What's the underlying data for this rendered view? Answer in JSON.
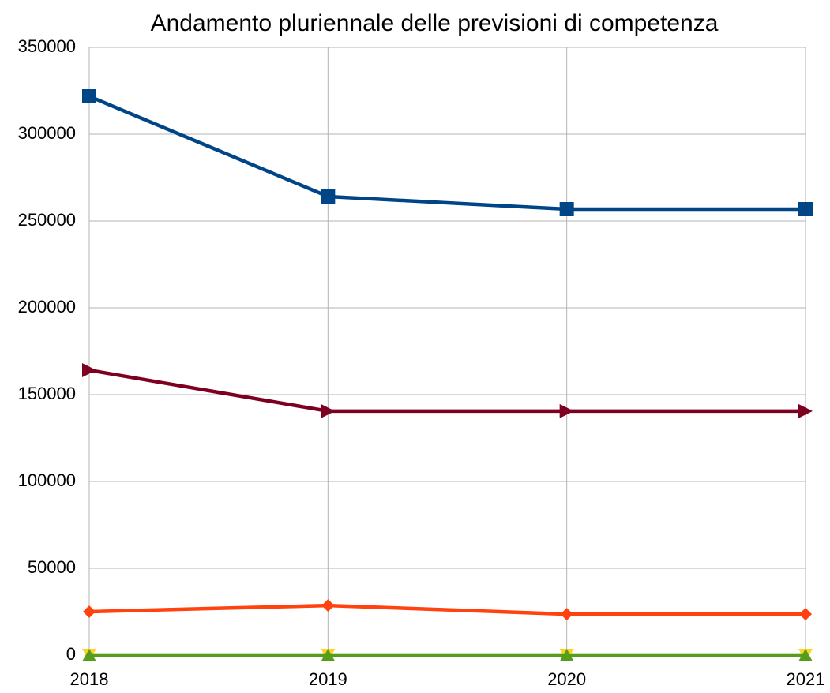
{
  "chart_data": {
    "type": "line",
    "title": "Andamento pluriennale delle previsioni di competenza",
    "categories": [
      "2018",
      "2019",
      "2020",
      "2021"
    ],
    "series": [
      {
        "color": "#004586",
        "marker": "square",
        "values": [
          321800,
          264100,
          256800,
          256800
        ]
      },
      {
        "color": "#7e0021",
        "marker": "triangle-right",
        "values": [
          164100,
          140500,
          140500,
          140500
        ]
      },
      {
        "color": "#ff420e",
        "marker": "diamond",
        "values": [
          25000,
          28600,
          23600,
          23600
        ]
      },
      {
        "color": "#ffd320",
        "marker": "triangle-down",
        "values": [
          0,
          0,
          0,
          0
        ]
      },
      {
        "color": "#579d1c",
        "marker": "triangle-up",
        "values": [
          0,
          0,
          0,
          0
        ]
      }
    ],
    "ylim": [
      0,
      350000
    ],
    "yticks": [
      0,
      50000,
      100000,
      150000,
      200000,
      250000,
      300000,
      350000
    ],
    "grid": true
  }
}
